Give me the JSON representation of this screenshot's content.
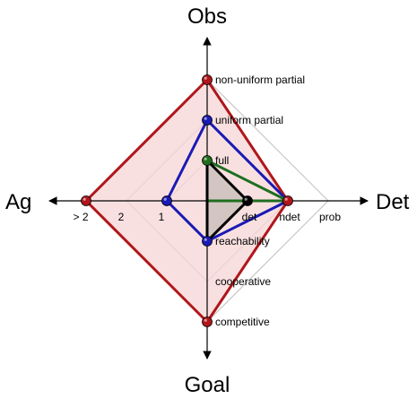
{
  "axis_titles": {
    "top": "Obs",
    "right": "Det",
    "bottom": "Goal",
    "left": "Ag"
  },
  "ticks": {
    "obs": [
      "full",
      "uniform partial",
      "non-uniform partial"
    ],
    "det": [
      "det",
      "ndet",
      "prob"
    ],
    "goal": [
      "reachability",
      "cooperative",
      "competitive"
    ],
    "ag": [
      "1",
      "2",
      "> 2"
    ]
  },
  "colors": {
    "red": "#b0161b",
    "red_fill": "#f7d6d6",
    "blue": "#1a1ab4",
    "green": "#1f6e1f",
    "black": "#000000",
    "inner_fill": "#c6beb8"
  },
  "chart_data": {
    "type": "radar",
    "axes": [
      "Obs",
      "Det",
      "Goal",
      "Ag"
    ],
    "levels": {
      "Obs": [
        "full",
        "uniform partial",
        "non-uniform partial"
      ],
      "Det": [
        "det",
        "ndet",
        "prob"
      ],
      "Goal": [
        "reachability",
        "cooperative",
        "competitive"
      ],
      "Ag": [
        "1",
        "2",
        "> 2"
      ]
    },
    "series": [
      {
        "values": {
          "Obs": 3,
          "Det": 2,
          "Goal": 3,
          "Ag": 3
        },
        "color": "#b0161b",
        "fill": "#f7d6d6"
      },
      {
        "values": {
          "Obs": 2,
          "Det": 2,
          "Goal": 1,
          "Ag": 1
        },
        "color": "#1a1ab4"
      },
      {
        "values": {
          "Obs": 1,
          "Det": 2,
          "Goal": 0,
          "Ag": 0
        },
        "color": "#1f6e1f"
      },
      {
        "values": {
          "Obs": 1,
          "Det": 1,
          "Goal": 1,
          "Ag": 0
        },
        "color": "#000000",
        "fill": "#c6beb8"
      }
    ]
  }
}
